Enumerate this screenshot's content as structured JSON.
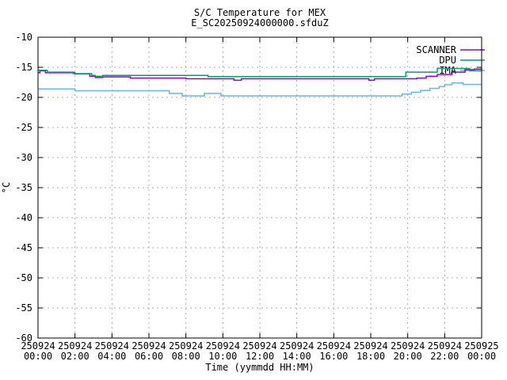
{
  "window": {
    "background": "#ffffff"
  },
  "chart_data": {
    "type": "line",
    "title": "S/C Temperature for MEX",
    "subtitle": "E_SC20250924000000.sfduZ",
    "xlabel": "Time (yymmdd HH:MM)",
    "ylabel": "°C",
    "ylim": [
      -60,
      -10
    ],
    "yticks": [
      -60,
      -55,
      -50,
      -45,
      -40,
      -35,
      -30,
      -25,
      -20,
      -15,
      -10
    ],
    "xticks_hours": [
      0,
      2,
      4,
      6,
      8,
      10,
      12,
      14,
      16,
      18,
      20,
      22,
      24
    ],
    "xtick_labels": [
      [
        "250924",
        "00:00"
      ],
      [
        "250924",
        "02:00"
      ],
      [
        "250924",
        "04:00"
      ],
      [
        "250924",
        "06:00"
      ],
      [
        "250924",
        "08:00"
      ],
      [
        "250924",
        "10:00"
      ],
      [
        "250924",
        "12:00"
      ],
      [
        "250924",
        "14:00"
      ],
      [
        "250924",
        "16:00"
      ],
      [
        "250924",
        "18:00"
      ],
      [
        "250924",
        "20:00"
      ],
      [
        "250924",
        "22:00"
      ],
      [
        "250925",
        "00:00"
      ]
    ],
    "grid": true,
    "legend_position": "top-right-inside",
    "colors": {
      "border": "#000000",
      "grid": "#b0b0b0",
      "text": "#000000"
    },
    "series": [
      {
        "name": "SCANNER",
        "color": "#9400d3",
        "step_points": [
          [
            0.0,
            -15.9
          ],
          [
            0.1,
            -15.6
          ],
          [
            0.4,
            -15.9
          ],
          [
            2.0,
            -16.1
          ],
          [
            2.8,
            -16.5
          ],
          [
            3.1,
            -16.7
          ],
          [
            3.5,
            -16.6
          ],
          [
            5.0,
            -16.8
          ],
          [
            8.0,
            -16.9
          ],
          [
            10.6,
            -17.15
          ],
          [
            11.0,
            -16.9
          ],
          [
            17.9,
            -17.15
          ],
          [
            18.2,
            -16.9
          ],
          [
            20.5,
            -16.8
          ],
          [
            21.0,
            -16.5
          ],
          [
            21.6,
            -16.2
          ],
          [
            22.4,
            -15.8
          ],
          [
            23.1,
            -15.4
          ],
          [
            23.6,
            -15.3
          ],
          [
            24.0,
            -15.2
          ]
        ]
      },
      {
        "name": "DPU",
        "color": "#009e73",
        "step_points": [
          [
            0.0,
            -15.5
          ],
          [
            0.5,
            -15.8
          ],
          [
            1.9,
            -16.05
          ],
          [
            2.9,
            -16.35
          ],
          [
            3.1,
            -16.5
          ],
          [
            3.5,
            -16.35
          ],
          [
            9.2,
            -16.55
          ],
          [
            19.9,
            -15.8
          ],
          [
            21.6,
            -15.2
          ],
          [
            23.35,
            -15.6
          ],
          [
            24.0,
            -15.6
          ]
        ]
      },
      {
        "name": "IMA",
        "color": "#69b5e7",
        "step_points": [
          [
            0.0,
            -18.6
          ],
          [
            2.0,
            -18.9
          ],
          [
            7.1,
            -19.35
          ],
          [
            7.8,
            -19.75
          ],
          [
            9.0,
            -19.35
          ],
          [
            9.9,
            -19.75
          ],
          [
            19.7,
            -19.45
          ],
          [
            20.2,
            -19.15
          ],
          [
            20.7,
            -18.85
          ],
          [
            21.2,
            -18.5
          ],
          [
            21.7,
            -18.2
          ],
          [
            22.0,
            -17.9
          ],
          [
            22.4,
            -17.6
          ],
          [
            23.0,
            -17.85
          ],
          [
            24.0,
            -17.85
          ]
        ]
      }
    ]
  }
}
